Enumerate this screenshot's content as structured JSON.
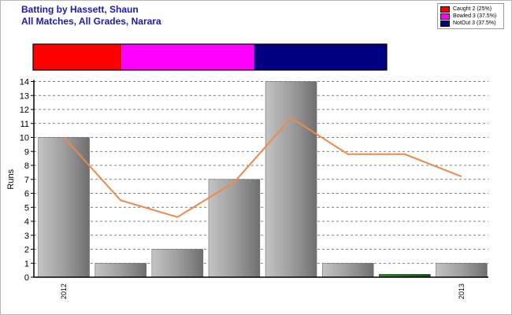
{
  "title_line1": "Batting by Hassett, Shaun",
  "title_line2": "All Matches, All Grades, Narara",
  "legend": [
    {
      "label": "Caught 2 (25%)",
      "color": "#ff0000"
    },
    {
      "label": "Bowled 3 (37.5%)",
      "color": "#ff00ff"
    },
    {
      "label": "NotOut 3 (37.5%)",
      "color": "#000080"
    }
  ],
  "chart_data": {
    "type": "bar",
    "ylabel": "Runs",
    "ylim": [
      0,
      14
    ],
    "yticks": [
      0,
      1,
      2,
      3,
      4,
      5,
      6,
      7,
      8,
      9,
      10,
      11,
      12,
      13,
      14
    ],
    "grid": true,
    "categories": [
      "2012",
      "",
      "",
      "",
      "",
      "",
      "",
      "2013"
    ],
    "series": [
      {
        "type": "bar",
        "values": [
          10,
          1,
          2,
          7,
          14,
          1,
          0.2,
          1
        ],
        "bar_colors": [
          "#999999",
          "#999999",
          "#999999",
          "#999999",
          "#999999",
          "#999999",
          "#1a6e1a",
          "#999999"
        ]
      },
      {
        "type": "line",
        "values": [
          10,
          5.5,
          4.3,
          6.8,
          11.4,
          8.8,
          8.8,
          7.2
        ],
        "color": "#f08848"
      }
    ],
    "dismissal_bar": [
      {
        "label": "Caught",
        "count": 2,
        "percent": 25,
        "color": "#ff0000"
      },
      {
        "label": "Bowled",
        "count": 3,
        "percent": 37.5,
        "color": "#ff00ff"
      },
      {
        "label": "NotOut",
        "count": 3,
        "percent": 37.5,
        "color": "#000080"
      }
    ]
  }
}
